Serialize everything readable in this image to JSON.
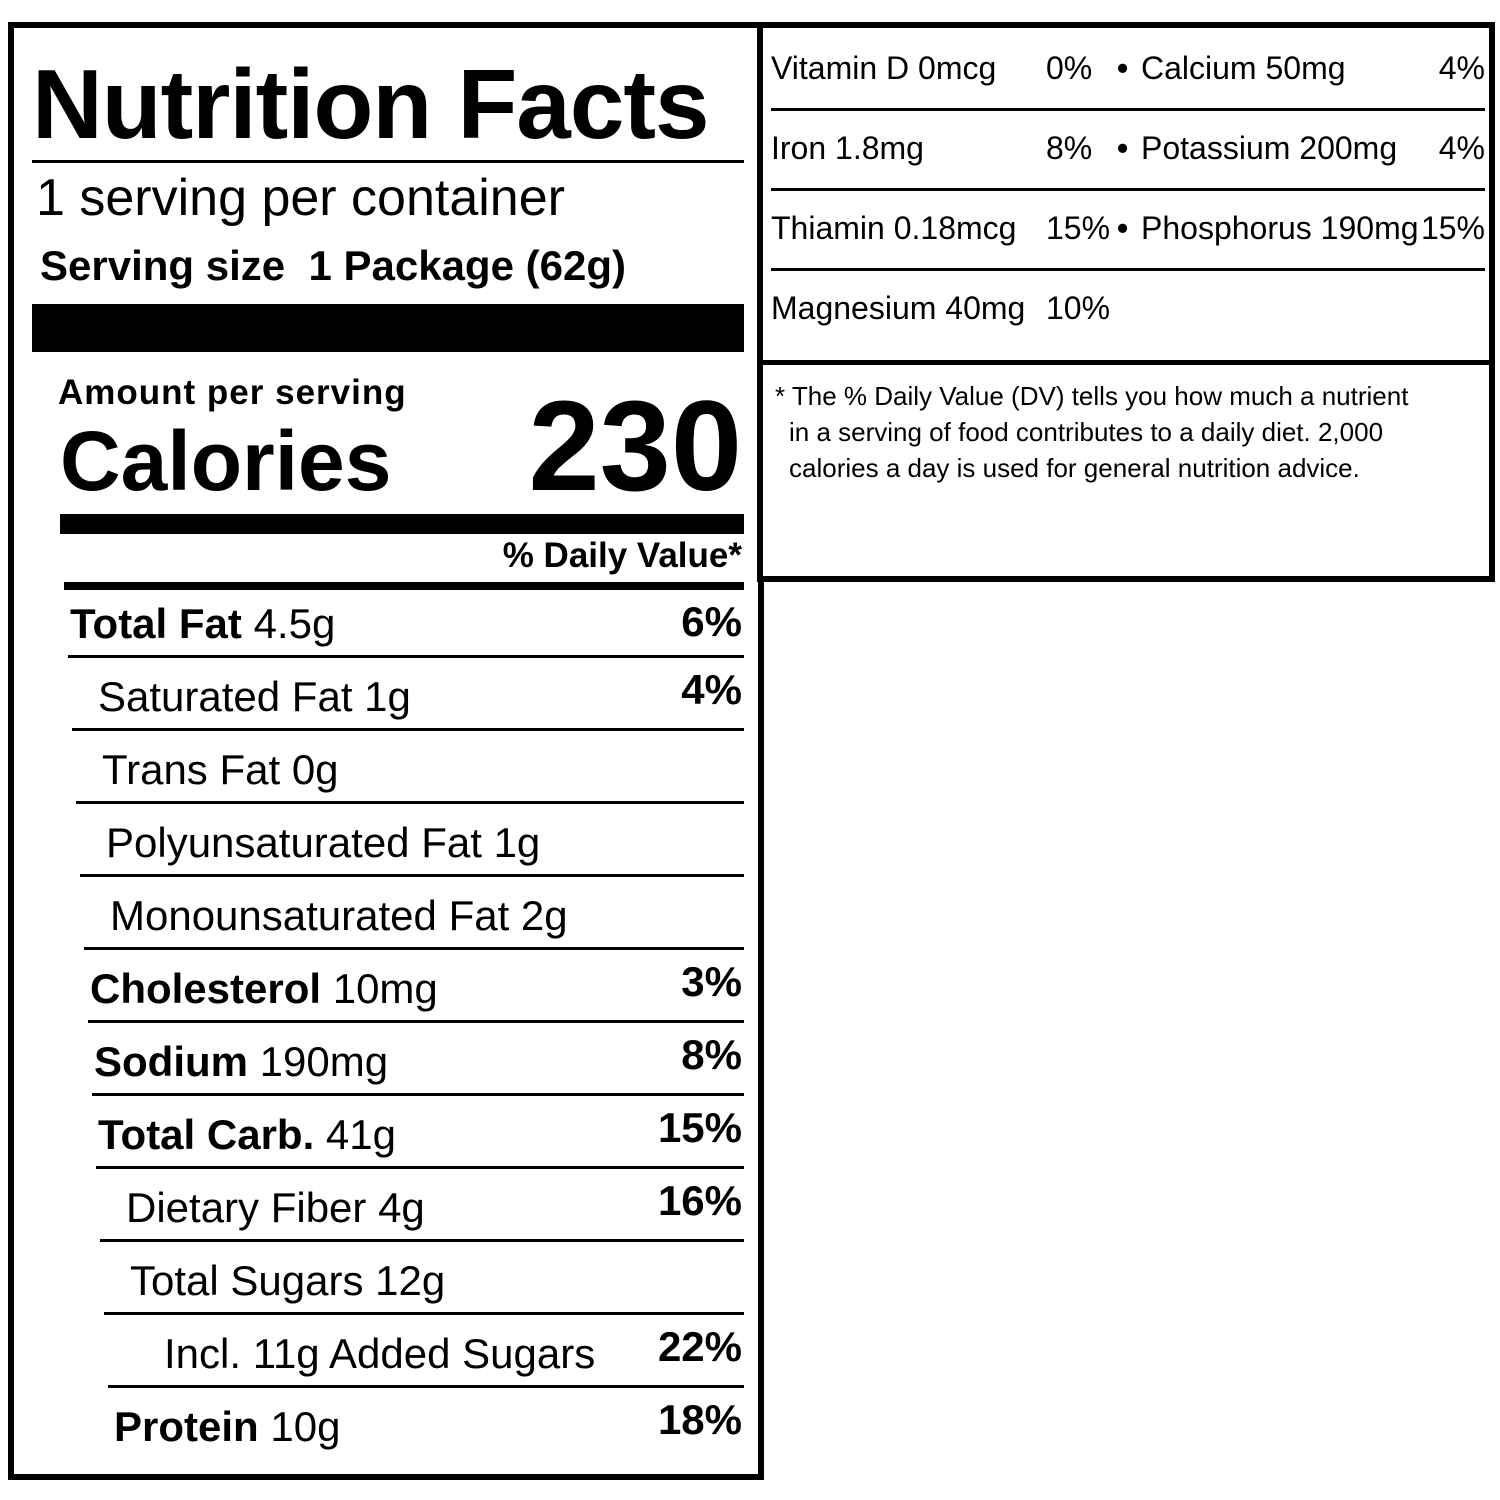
{
  "title": "Nutrition Facts",
  "servings_per_container": "1 serving per container",
  "serving_size_label": "Serving size",
  "serving_size_value": "1 Package (62g)",
  "amount_per_serving": "Amount per serving",
  "calories_label": "Calories",
  "calories_value": "230",
  "daily_value_header": "% Daily Value*",
  "nutrients": [
    {
      "name": "Total Fat",
      "amount": "4.5g",
      "dv": "6%",
      "bold": true,
      "indent": 0
    },
    {
      "name": "Saturated Fat",
      "amount": "1g",
      "dv": "4%",
      "bold": false,
      "indent": 1
    },
    {
      "name": "Trans Fat",
      "amount": "0g",
      "dv": "",
      "bold": false,
      "indent": 1
    },
    {
      "name": "Polyunsaturated Fat",
      "amount": "1g",
      "dv": "",
      "bold": false,
      "indent": 1
    },
    {
      "name": "Monounsaturated Fat",
      "amount": "2g",
      "dv": "",
      "bold": false,
      "indent": 1
    },
    {
      "name": "Cholesterol",
      "amount": "10mg",
      "dv": "3%",
      "bold": true,
      "indent": 0
    },
    {
      "name": "Sodium",
      "amount": "190mg",
      "dv": "8%",
      "bold": true,
      "indent": 0
    },
    {
      "name": "Total Carb.",
      "amount": "41g",
      "dv": "15%",
      "bold": true,
      "indent": 0
    },
    {
      "name": "Dietary Fiber",
      "amount": "4g",
      "dv": "16%",
      "bold": false,
      "indent": 1
    },
    {
      "name": "Total Sugars",
      "amount": "12g",
      "dv": "",
      "bold": false,
      "indent": 1
    },
    {
      "name": "Incl. 11g Added Sugars",
      "amount": "",
      "dv": "22%",
      "bold": false,
      "indent": 2
    },
    {
      "name": "Protein",
      "amount": "10g",
      "dv": "18%",
      "bold": true,
      "indent": 0
    }
  ],
  "vitamins": [
    {
      "left": "Vitamin D 0mcg",
      "left_dv": "0%",
      "right": "Calcium 50mg",
      "right_dv": "4%"
    },
    {
      "left": "Iron 1.8mg",
      "left_dv": "8%",
      "right": "Potassium 200mg",
      "right_dv": "4%"
    },
    {
      "left": "Thiamin 0.18mcg",
      "left_dv": "15%",
      "right": "Phosphorus 190mg",
      "right_dv": "15%"
    },
    {
      "left": "Magnesium 40mg",
      "left_dv": "10%",
      "right": "",
      "right_dv": ""
    }
  ],
  "footnote": [
    "* The % Daily Value (DV) tells you how much a nutrient",
    "in a serving of food contributes to a daily diet. 2,000",
    "calories a day is used for general nutrition advice."
  ]
}
